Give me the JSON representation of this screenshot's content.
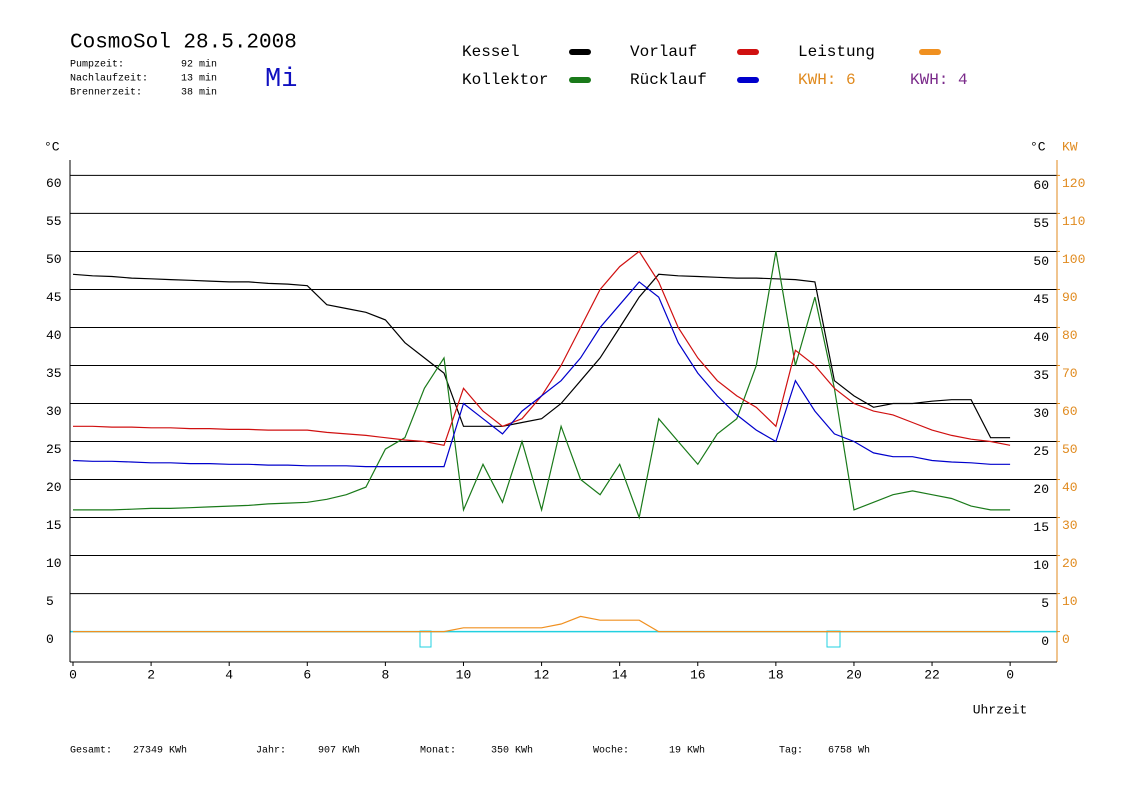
{
  "chart_data": {
    "type": "line",
    "title": "CosmoSol 28.5.2008",
    "weekday": "Mi",
    "info": [
      {
        "label": "Pumpzeit:",
        "value": "92 min"
      },
      {
        "label": "Nachlaufzeit:",
        "value": "13 min"
      },
      {
        "label": "Brennerzeit:",
        "value": "38 min"
      }
    ],
    "kwh_labels": [
      {
        "text": "KWH: 6",
        "color": "#e08a1e"
      },
      {
        "text": "KWH: 4",
        "color": "#7a2a8a"
      }
    ],
    "totals": [
      {
        "label": "Gesamt:",
        "value": "27349 KWh"
      },
      {
        "label": "Jahr:",
        "value": "907 KWh"
      },
      {
        "label": "Monat:",
        "value": "350 KWh"
      },
      {
        "label": "Woche:",
        "value": "19 KWh"
      },
      {
        "label": "Tag:",
        "value": "6758 Wh"
      }
    ],
    "y_unit": "°C",
    "y2_unit": "KW",
    "xlabel": "Uhrzeit",
    "xlim": [
      0,
      25.2
    ],
    "xticks": [
      0,
      2,
      4,
      6,
      8,
      10,
      12,
      14,
      16,
      18,
      20,
      22,
      {
        "value": 24,
        "label": "0"
      }
    ],
    "ylim": [
      -4,
      64
    ],
    "yticks": [
      0,
      5,
      10,
      15,
      20,
      25,
      30,
      35,
      40,
      45,
      50,
      55,
      60
    ],
    "y2lim": [
      -8,
      128
    ],
    "y2ticks": [
      0,
      10,
      20,
      30,
      40,
      50,
      60,
      70,
      80,
      90,
      100,
      110,
      120
    ],
    "grid": true,
    "x": [
      0,
      0.5,
      1,
      1.5,
      2,
      2.5,
      3,
      3.5,
      4,
      4.5,
      5,
      5.5,
      6,
      6.5,
      7,
      7.5,
      8,
      8.5,
      9,
      9.5,
      10,
      10.5,
      11,
      11.5,
      12,
      12.5,
      13,
      13.5,
      14,
      14.5,
      15,
      15.5,
      16,
      16.5,
      17,
      17.5,
      18,
      18.5,
      19,
      19.5,
      20,
      20.5,
      21,
      21.5,
      22,
      22.5,
      23,
      23.5,
      24
    ],
    "series": [
      {
        "name": "Kessel",
        "color": "#000000",
        "values": [
          47,
          46.8,
          46.7,
          46.5,
          46.4,
          46.3,
          46.2,
          46.1,
          46,
          46,
          45.8,
          45.7,
          45.5,
          43,
          42.5,
          42,
          41,
          38,
          36,
          34,
          27,
          27,
          27,
          27.5,
          28,
          30,
          33,
          36,
          40,
          44,
          47,
          46.8,
          46.7,
          46.6,
          46.5,
          46.5,
          46.4,
          46.3,
          46,
          33,
          31,
          29.5,
          30,
          30,
          30.3,
          30.5,
          30.5,
          25.5,
          25.5
        ]
      },
      {
        "name": "Kollektor",
        "color": "#1a7a1a",
        "values": [
          16,
          16,
          16,
          16.1,
          16.2,
          16.2,
          16.3,
          16.4,
          16.5,
          16.6,
          16.8,
          16.9,
          17,
          17.4,
          18,
          19,
          24,
          25.5,
          32,
          36,
          16,
          22,
          17,
          25,
          16,
          27,
          20,
          18,
          22,
          15,
          28,
          25,
          22,
          26,
          28,
          35,
          50,
          35,
          44,
          32,
          16,
          17,
          18,
          18.5,
          18,
          17.5,
          16.5,
          16,
          16
        ]
      },
      {
        "name": "Vorlauf",
        "color": "#d01010",
        "values": [
          27,
          27,
          26.9,
          26.9,
          26.8,
          26.8,
          26.7,
          26.7,
          26.6,
          26.6,
          26.5,
          26.5,
          26.5,
          26.2,
          26,
          25.8,
          25.5,
          25.2,
          25,
          24.5,
          32,
          29,
          27,
          28,
          31,
          35,
          40,
          45,
          48,
          50,
          46,
          40,
          36,
          33,
          31,
          29.5,
          27,
          37,
          35,
          32,
          30,
          29,
          28.5,
          27.5,
          26.5,
          25.8,
          25.3,
          25,
          24.5
        ]
      },
      {
        "name": "Rücklauf",
        "color": "#0000cc",
        "values": [
          22.5,
          22.4,
          22.4,
          22.3,
          22.2,
          22.2,
          22.1,
          22.1,
          22,
          22,
          21.9,
          21.9,
          21.8,
          21.8,
          21.8,
          21.7,
          21.7,
          21.7,
          21.7,
          21.7,
          30,
          28,
          26,
          29,
          31,
          33,
          36,
          40,
          43,
          46,
          44,
          38,
          34,
          31,
          28.5,
          26.5,
          25,
          33,
          29,
          26,
          25,
          23.5,
          23,
          23,
          22.5,
          22.3,
          22.2,
          22,
          22
        ]
      },
      {
        "name": "Leistung",
        "color": "#f09020",
        "axis": "y2",
        "values": [
          0,
          0,
          0,
          0,
          0,
          0,
          0,
          0,
          0,
          0,
          0,
          0,
          0,
          0,
          0,
          0,
          0,
          0,
          0,
          0,
          1,
          1,
          1,
          1,
          1,
          2,
          4,
          3,
          3,
          3,
          0,
          0,
          0,
          0,
          0,
          0,
          0,
          0,
          0,
          0,
          0,
          0,
          0,
          0,
          0,
          0,
          0,
          0,
          0
        ]
      }
    ]
  }
}
